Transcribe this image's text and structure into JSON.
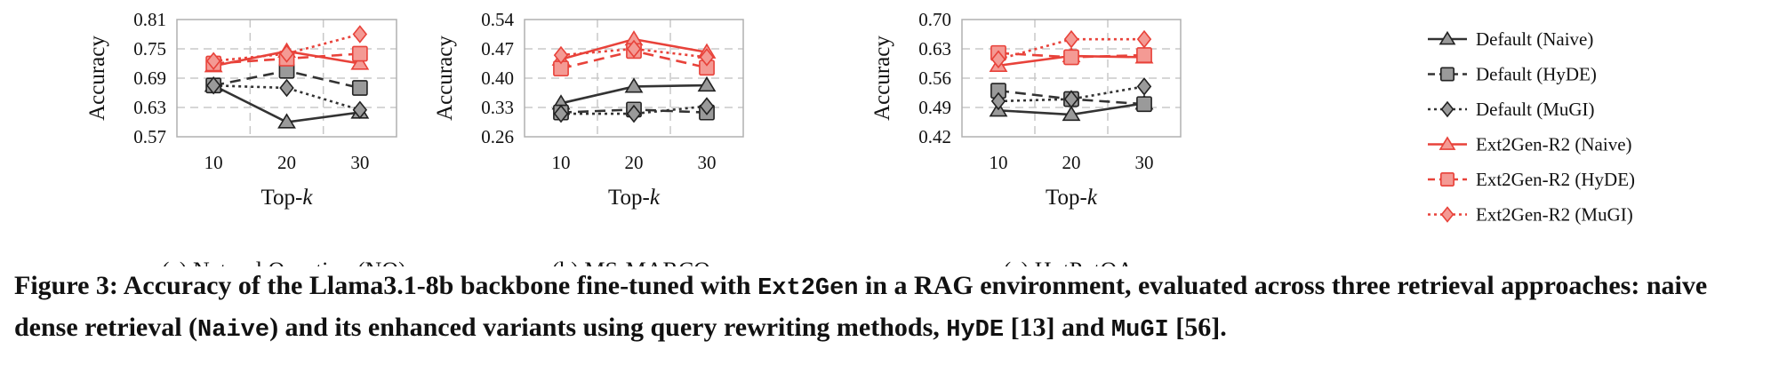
{
  "chart_data": [
    {
      "type": "line",
      "subtitle": "(a) Natural Question (NQ).",
      "xlabel": "Top-",
      "xlabel_italic": "k",
      "ylabel": "Accuracy",
      "x": [
        "10",
        "20",
        "30"
      ],
      "ylim": [
        0.57,
        0.81
      ],
      "yticks": [
        "0.57",
        "0.63",
        "0.69",
        "0.75",
        "0.81"
      ],
      "grid": true,
      "series": [
        {
          "name": "Default (Naive)",
          "values": [
            0.675,
            0.6,
            0.62
          ]
        },
        {
          "name": "Default (HyDE)",
          "values": [
            0.675,
            0.705,
            0.67
          ]
        },
        {
          "name": "Default (MuGI)",
          "values": [
            0.675,
            0.67,
            0.625
          ]
        },
        {
          "name": "Ext2Gen-R2 (Naive)",
          "values": [
            0.715,
            0.745,
            0.72
          ]
        },
        {
          "name": "Ext2Gen-R2 (HyDE)",
          "values": [
            0.72,
            0.73,
            0.74
          ]
        },
        {
          "name": "Ext2Gen-R2 (MuGI)",
          "values": [
            0.725,
            0.74,
            0.78
          ]
        }
      ]
    },
    {
      "type": "line",
      "subtitle": "(b) MS-MARCO.",
      "xlabel": "Top-",
      "xlabel_italic": "k",
      "ylabel": "Accuracy",
      "x": [
        "10",
        "20",
        "30"
      ],
      "ylim": [
        0.26,
        0.54
      ],
      "yticks": [
        "0.26",
        "0.33",
        "0.40",
        "0.47",
        "0.54"
      ],
      "grid": true,
      "series": [
        {
          "name": "Default (Naive)",
          "values": [
            0.34,
            0.38,
            0.383
          ]
        },
        {
          "name": "Default (HyDE)",
          "values": [
            0.318,
            0.325,
            0.318
          ]
        },
        {
          "name": "Default (MuGI)",
          "values": [
            0.315,
            0.315,
            0.333
          ]
        },
        {
          "name": "Ext2Gen-R2 (Naive)",
          "values": [
            0.445,
            0.493,
            0.462
          ]
        },
        {
          "name": "Ext2Gen-R2 (HyDE)",
          "values": [
            0.423,
            0.465,
            0.425
          ]
        },
        {
          "name": "Ext2Gen-R2 (MuGI)",
          "values": [
            0.455,
            0.47,
            0.45
          ]
        }
      ]
    },
    {
      "type": "line",
      "subtitle": "(c) HotPotQA.",
      "xlabel": "Top-",
      "xlabel_italic": "k",
      "ylabel": "Accuracy",
      "x": [
        "10",
        "20",
        "30"
      ],
      "ylim": [
        0.42,
        0.7
      ],
      "yticks": [
        "0.42",
        "0.49",
        "0.56",
        "0.63",
        "0.70"
      ],
      "grid": true,
      "series": [
        {
          "name": "Default (Naive)",
          "values": [
            0.483,
            0.473,
            0.5
          ]
        },
        {
          "name": "Default (HyDE)",
          "values": [
            0.53,
            0.51,
            0.498
          ]
        },
        {
          "name": "Default (MuGI)",
          "values": [
            0.505,
            0.51,
            0.54
          ]
        },
        {
          "name": "Ext2Gen-R2 (Naive)",
          "values": [
            0.59,
            0.613,
            0.61
          ]
        },
        {
          "name": "Ext2Gen-R2 (HyDE)",
          "values": [
            0.62,
            0.61,
            0.615
          ]
        },
        {
          "name": "Ext2Gen-R2 (MuGI)",
          "values": [
            0.605,
            0.653,
            0.653
          ]
        }
      ]
    }
  ],
  "legend": {
    "placement": "right",
    "items": [
      {
        "label": "Default (Naive)",
        "color": "#333333",
        "marker": "triangle",
        "dash": "solid"
      },
      {
        "label": "Default (HyDE)",
        "color": "#333333",
        "marker": "square",
        "dash": "dashed"
      },
      {
        "label": "Default (MuGI)",
        "color": "#333333",
        "marker": "diamond",
        "dash": "dotted"
      },
      {
        "label": "Ext2Gen-R2 (Naive)",
        "color": "#e8423a",
        "marker": "triangle",
        "dash": "solid"
      },
      {
        "label": "Ext2Gen-R2 (HyDE)",
        "color": "#e8423a",
        "marker": "square",
        "dash": "dashed"
      },
      {
        "label": "Ext2Gen-R2 (MuGI)",
        "color": "#e8423a",
        "marker": "diamond",
        "dash": "dotted"
      }
    ]
  },
  "caption": {
    "p1": "Figure 3: Accuracy of the Llama3.1-8b backbone fine-tuned with ",
    "c1": "Ext2Gen",
    "p2": " in a RAG environment, evaluated across three retrieval approaches: naive dense retrieval (",
    "c2": "Naive",
    "p3": ") and its enhanced variants using query rewriting methods, ",
    "c3": "HyDE",
    "p4": " [13] and ",
    "c4": "MuGI",
    "p5": " [56]."
  }
}
